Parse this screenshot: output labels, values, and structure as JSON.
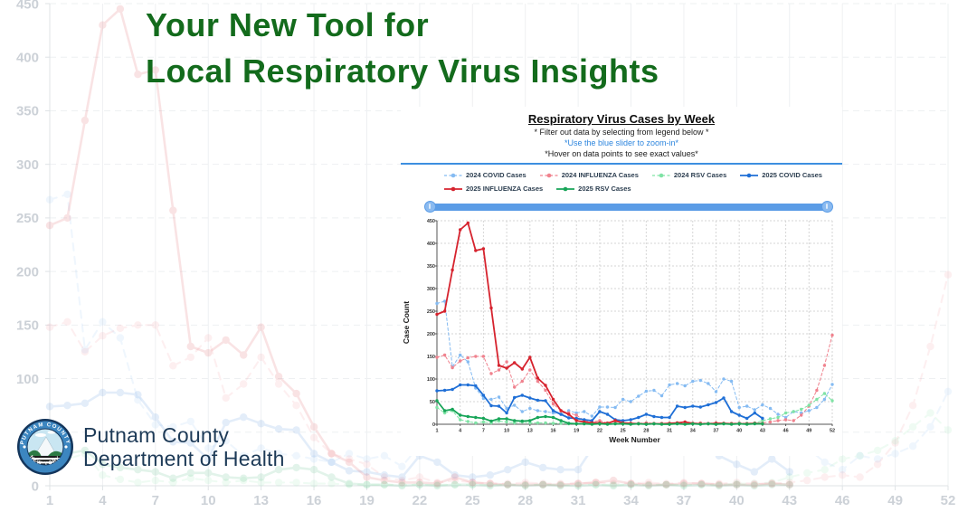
{
  "slide": {
    "title_line1": "Your New Tool for",
    "title_line2": "Local Respiratory Virus Insights",
    "title_color": "#136b1c",
    "org_line1": "Putnam County",
    "org_line2": "Department of Health",
    "seal_top": "PUTNAM COUNTY",
    "seal_bottom": "NEW YORK"
  },
  "panel": {
    "title": "Respiratory Virus Cases by Week",
    "subtitle1": "* Filter out data by selecting from legend below *",
    "subtitle2": "*Use the blue slider to zoom-in*",
    "subtitle3": "*Hover on data points to see exact values*",
    "accent_blue": "#3d8fe0",
    "instruction_blue": "#2e86de"
  },
  "chart_data": {
    "type": "line",
    "title": "Respiratory Virus Cases by Week",
    "xlabel": "Week Number",
    "ylabel": "Case Count",
    "ylim": [
      0,
      450
    ],
    "yticks": [
      0,
      50,
      100,
      150,
      200,
      250,
      300,
      350,
      400,
      450
    ],
    "xticks": [
      1,
      4,
      7,
      10,
      13,
      16,
      19,
      22,
      25,
      28,
      31,
      34,
      37,
      40,
      43,
      46,
      49,
      52
    ],
    "x": [
      1,
      2,
      3,
      4,
      5,
      6,
      7,
      8,
      9,
      10,
      11,
      12,
      13,
      14,
      15,
      16,
      17,
      18,
      19,
      20,
      21,
      22,
      23,
      24,
      25,
      26,
      27,
      28,
      29,
      30,
      31,
      32,
      33,
      34,
      35,
      36,
      37,
      38,
      39,
      40,
      41,
      42,
      43,
      44,
      45,
      46,
      47,
      48,
      49,
      50,
      51,
      52
    ],
    "grid": true,
    "legend_position": "top",
    "series": [
      {
        "name": "2024 COVID Cases",
        "color": "#85bbf2",
        "style": "dashed",
        "values": [
          267,
          272,
          127,
          153,
          138,
          80,
          57,
          55,
          60,
          35,
          42,
          28,
          35,
          30,
          28,
          25,
          22,
          30,
          25,
          28,
          18,
          38,
          38,
          37,
          55,
          50,
          62,
          73,
          75,
          63,
          87,
          90,
          85,
          95,
          97,
          90,
          72,
          100,
          95,
          37,
          40,
          32,
          43,
          35,
          22,
          15,
          28,
          25,
          30,
          37,
          55,
          88
        ]
      },
      {
        "name": "2024 INFLUENZA Cases",
        "color": "#f0828e",
        "style": "dashed",
        "values": [
          148,
          153,
          125,
          140,
          147,
          150,
          150,
          112,
          120,
          138,
          82,
          95,
          120,
          95,
          75,
          45,
          30,
          25,
          20,
          8,
          5,
          8,
          3,
          5,
          3,
          2,
          2,
          3,
          2,
          2,
          2,
          3,
          2,
          2,
          3,
          2,
          3,
          2,
          2,
          3,
          2,
          2,
          3,
          5,
          8,
          10,
          8,
          20,
          40,
          75,
          130,
          197
        ]
      },
      {
        "name": "2024 RSV Cases",
        "color": "#7fe3a5",
        "style": "dashed",
        "values": [
          37,
          25,
          30,
          10,
          6,
          3,
          5,
          3,
          7,
          5,
          3,
          5,
          3,
          3,
          3,
          2,
          2,
          1,
          1,
          1,
          1,
          1,
          1,
          1,
          1,
          1,
          1,
          1,
          1,
          1,
          1,
          1,
          1,
          1,
          1,
          1,
          1,
          1,
          1,
          2,
          2,
          3,
          8,
          12,
          15,
          25,
          28,
          33,
          42,
          55,
          68,
          52
        ]
      },
      {
        "name": "2025 COVID Cases",
        "color": "#1f6fd6",
        "style": "solid",
        "values": [
          74,
          75,
          77,
          87,
          87,
          85,
          64,
          41,
          40,
          25,
          59,
          64,
          58,
          53,
          52,
          30,
          22,
          14,
          13,
          10,
          8,
          28,
          22,
          10,
          8,
          10,
          15,
          22,
          17,
          15,
          15,
          40,
          37,
          40,
          38,
          43,
          48,
          58,
          28,
          20,
          13,
          25,
          13,
          null,
          null,
          null,
          null,
          null,
          null,
          null,
          null,
          null
        ]
      },
      {
        "name": "2025 INFLUENZA Cases",
        "color": "#d6232e",
        "style": "solid",
        "values": [
          243,
          250,
          341,
          430,
          445,
          384,
          388,
          257,
          130,
          124,
          136,
          122,
          148,
          102,
          86,
          55,
          30,
          22,
          8,
          5,
          3,
          3,
          2,
          8,
          3,
          2,
          1,
          1,
          1,
          1,
          2,
          3,
          5,
          2,
          1,
          1,
          2,
          2,
          1,
          1,
          1,
          2,
          1,
          null,
          null,
          null,
          null,
          null,
          null,
          null,
          null,
          null
        ]
      },
      {
        "name": "2025 RSV Cases",
        "color": "#17a558",
        "style": "solid",
        "values": [
          52,
          30,
          33,
          20,
          17,
          15,
          13,
          7,
          12,
          12,
          8,
          7,
          8,
          15,
          17,
          15,
          8,
          2,
          1,
          1,
          0,
          1,
          0,
          1,
          1,
          0,
          1,
          0,
          1,
          0,
          0,
          1,
          0,
          1,
          0,
          1,
          0,
          1,
          0,
          1,
          0,
          1,
          1,
          null,
          null,
          null,
          null,
          null,
          null,
          null,
          null,
          null
        ]
      }
    ]
  }
}
